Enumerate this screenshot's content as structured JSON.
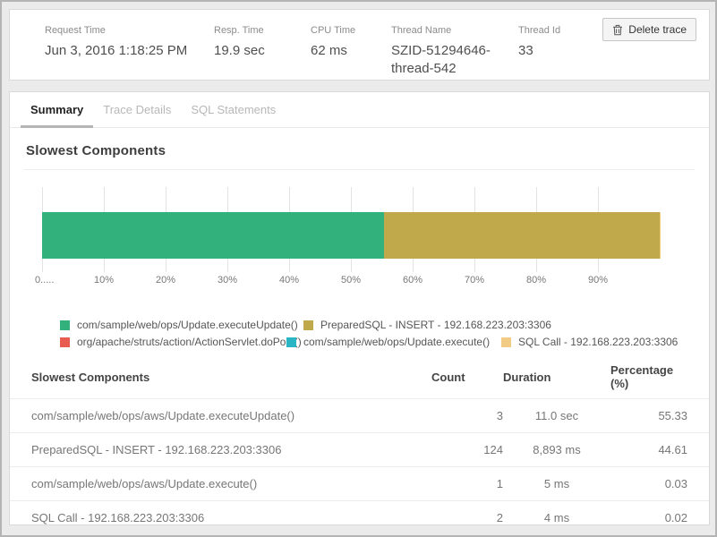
{
  "header": {
    "stats": [
      {
        "label": "Request Time",
        "value": "Jun 3, 2016 1:18:25 PM"
      },
      {
        "label": "Resp. Time",
        "value": "19.9 sec"
      },
      {
        "label": "CPU Time",
        "value": "62 ms"
      },
      {
        "label": "Thread Name",
        "value": "SZID-51294646-thread-542"
      },
      {
        "label": "Thread Id",
        "value": "33"
      }
    ],
    "delete_button_label": "Delete trace"
  },
  "tabs": [
    {
      "label": "Summary",
      "active": true
    },
    {
      "label": "Trace Details",
      "active": false
    },
    {
      "label": "SQL Statements",
      "active": false
    }
  ],
  "section_title": "Slowest Components",
  "chart_data": {
    "type": "bar",
    "orientation": "horizontal-stacked",
    "title": "Slowest Components",
    "xlim": [
      0,
      100
    ],
    "x_ticks": [
      {
        "value": 0,
        "label": "0....."
      },
      {
        "value": 10,
        "label": "10%"
      },
      {
        "value": 20,
        "label": "20%"
      },
      {
        "value": 30,
        "label": "30%"
      },
      {
        "value": 40,
        "label": "40%"
      },
      {
        "value": 50,
        "label": "50%"
      },
      {
        "value": 60,
        "label": "60%"
      },
      {
        "value": 70,
        "label": "70%"
      },
      {
        "value": 80,
        "label": "80%"
      },
      {
        "value": 90,
        "label": "90%"
      }
    ],
    "grid": true,
    "legend_position": "bottom",
    "series": [
      {
        "name": "com/sample/web/ops/Update.executeUpdate()",
        "value": 55.33,
        "color": "#33b17d"
      },
      {
        "name": "PreparedSQL - INSERT - 192.168.223.203:3306",
        "value": 44.61,
        "color": "#bfa94a"
      },
      {
        "name": "org/apache/struts/action/ActionServlet.doPost()",
        "value": 0.01,
        "color": "#e85b51"
      },
      {
        "name": "com/sample/web/ops/Update.execute()",
        "value": 0.03,
        "color": "#2ab5c4"
      },
      {
        "name": "SQL Call - 192.168.223.203:3306",
        "value": 0.02,
        "color": "#f2cc85"
      }
    ],
    "legend_rows": [
      [
        0,
        1
      ],
      [
        2,
        3,
        4
      ]
    ]
  },
  "table": {
    "columns": [
      "Slowest Components",
      "Count",
      "Duration",
      "Percentage (%)"
    ],
    "rows": [
      {
        "component": "com/sample/web/ops/aws/Update.executeUpdate()",
        "count": "3",
        "duration": "11.0 sec",
        "percentage": "55.33"
      },
      {
        "component": "PreparedSQL - INSERT - 192.168.223.203:3306",
        "count": "124",
        "duration": "8,893 ms",
        "percentage": "44.61"
      },
      {
        "component": "com/sample/web/ops/aws/Update.execute()",
        "count": "1",
        "duration": "5 ms",
        "percentage": "0.03"
      },
      {
        "component": "SQL Call - 192.168.223.203:3306",
        "count": "2",
        "duration": "4 ms",
        "percentage": "0.02"
      }
    ]
  }
}
